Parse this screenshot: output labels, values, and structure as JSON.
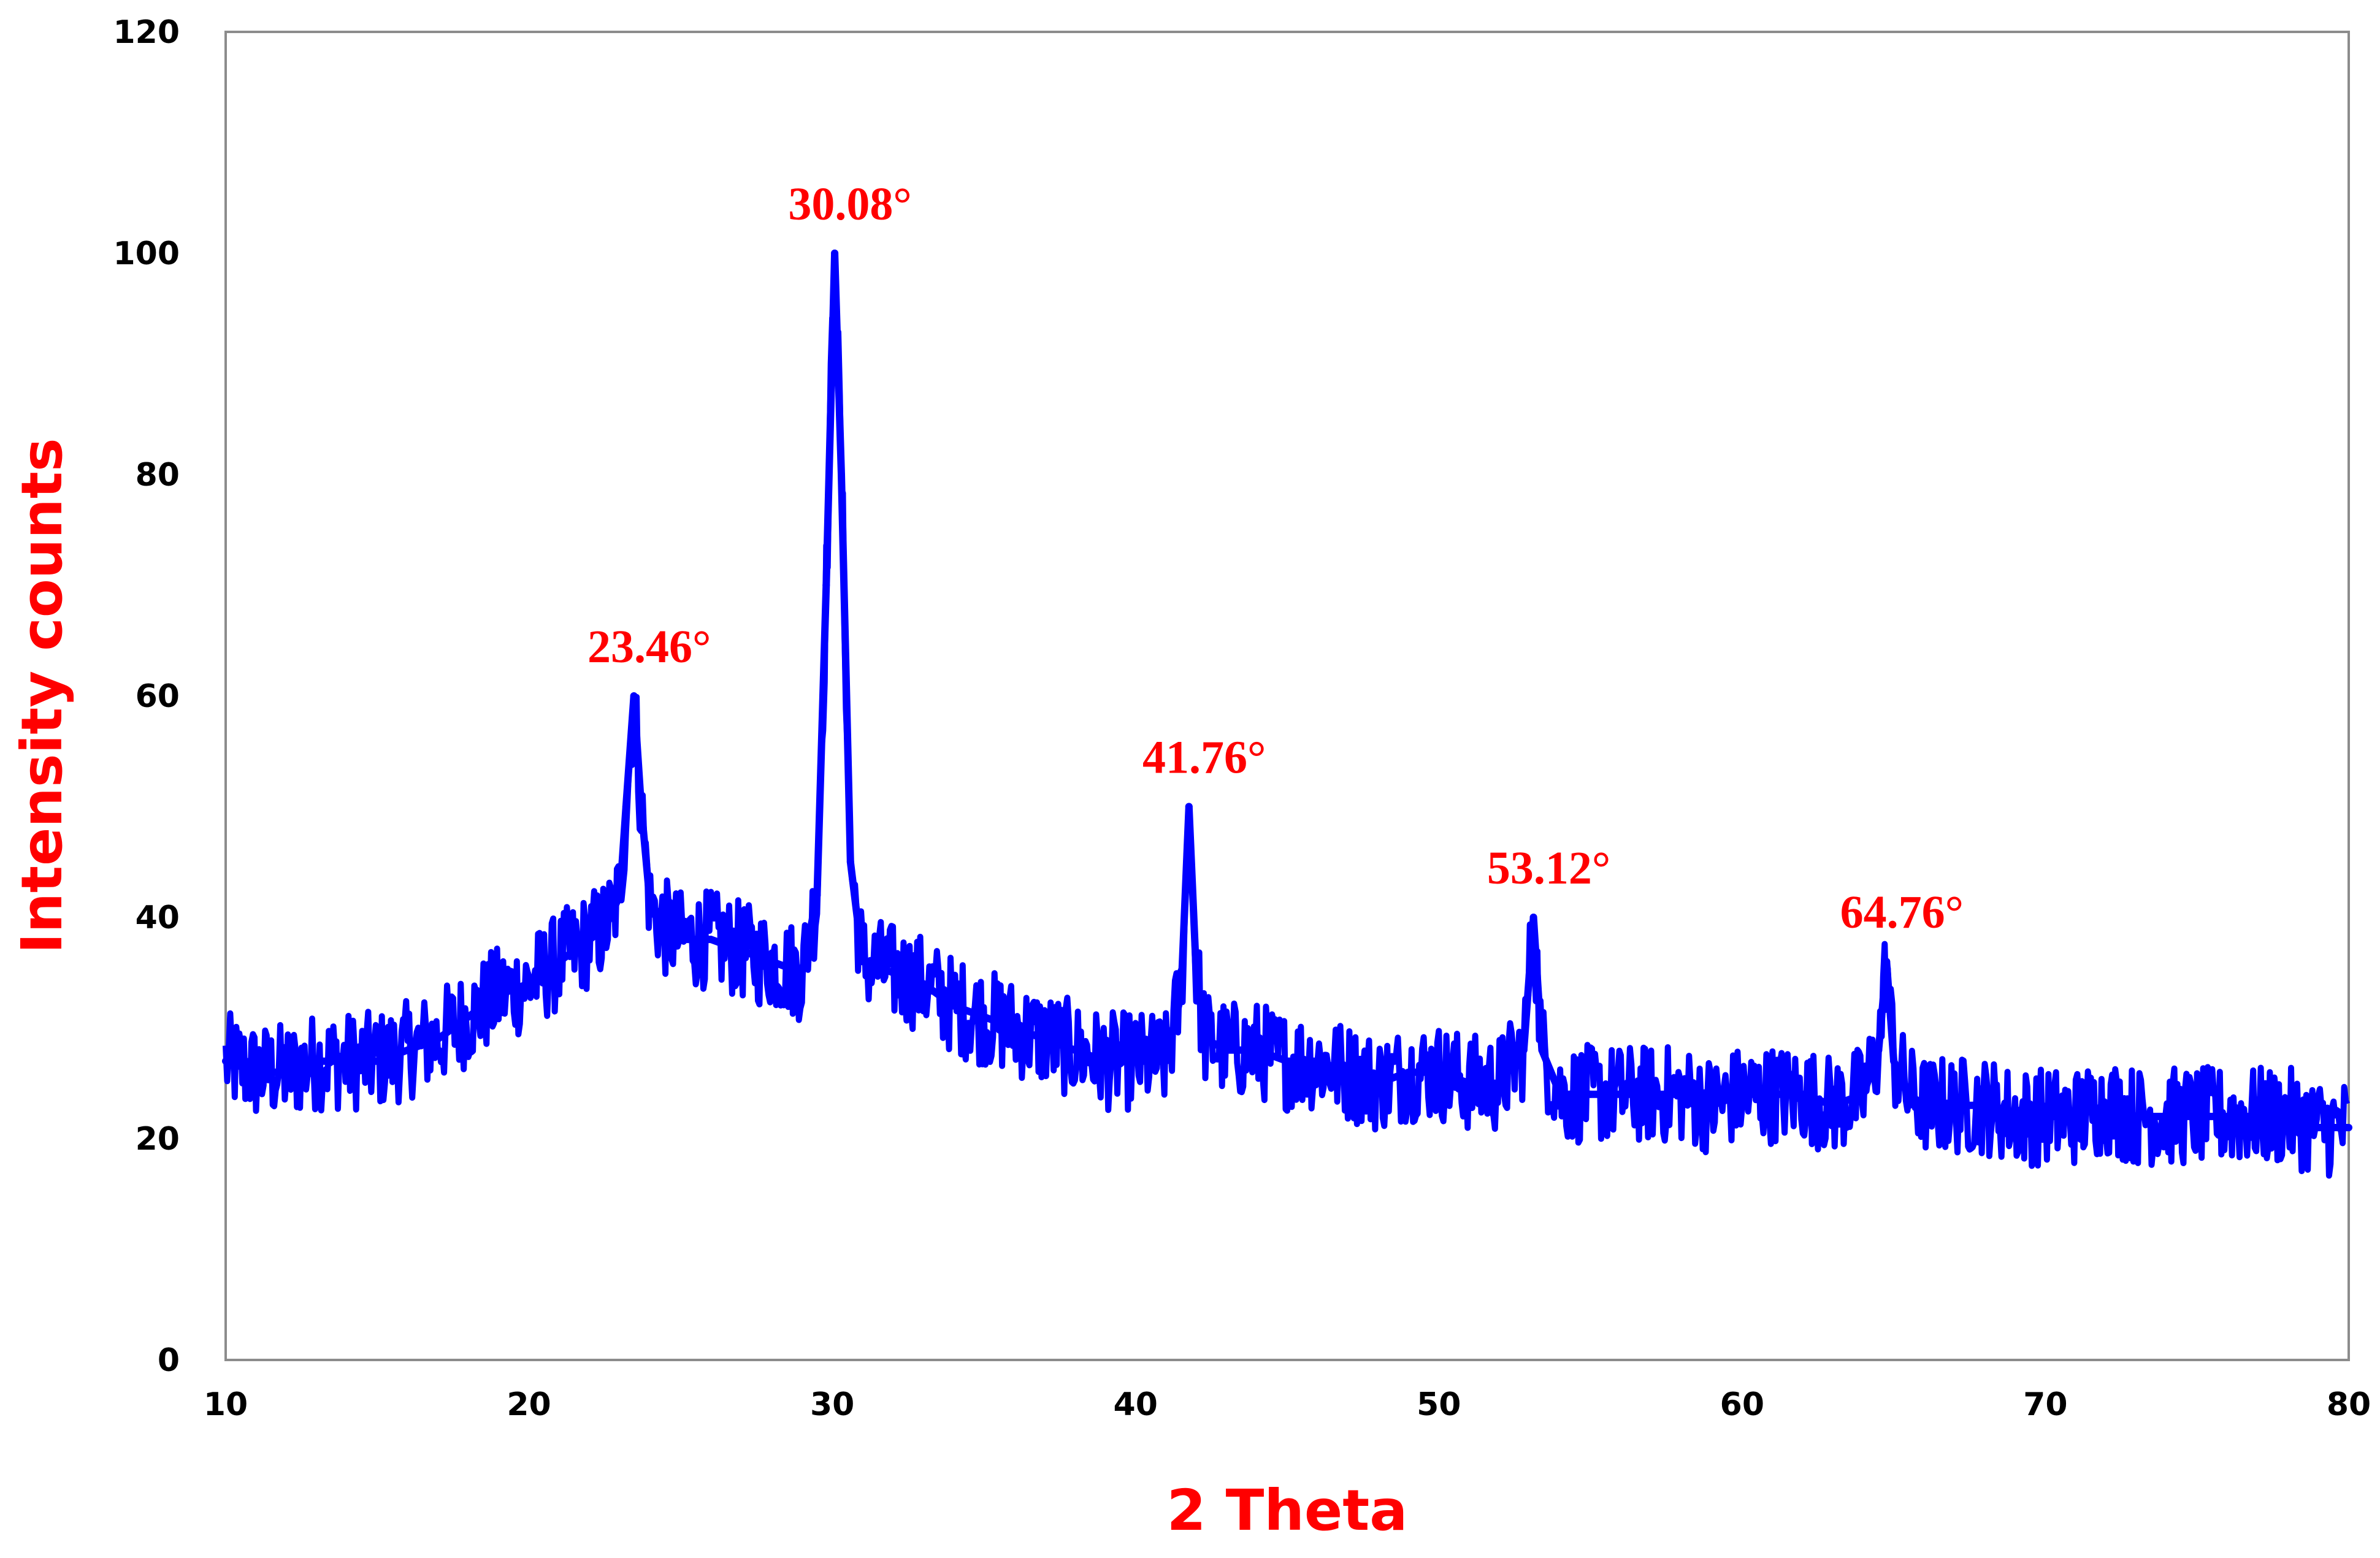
{
  "chart_data": {
    "type": "line",
    "title": "",
    "xlabel": "2 Theta",
    "ylabel": "Intensity counts",
    "xlim": [
      10,
      80
    ],
    "ylim": [
      0,
      120
    ],
    "x_ticks": [
      "10",
      "20",
      "30",
      "40",
      "50",
      "60",
      "70",
      "80"
    ],
    "y_ticks": [
      "0",
      "20",
      "40",
      "60",
      "80",
      "100",
      "120"
    ],
    "grid": false,
    "legend": "none",
    "colors": {
      "series": "#0000ff",
      "axis_title": "#ff0000",
      "annotation": "#ff0000",
      "frame": "#8c8c8c"
    },
    "series": [
      {
        "x": [
          10,
          11,
          12,
          13,
          14,
          15,
          16,
          17,
          18,
          19,
          20,
          21,
          22,
          22.5,
          23,
          23.2,
          23.46,
          23.7,
          24,
          24.5,
          25,
          26,
          27,
          28,
          29,
          29.5,
          29.8,
          30.08,
          30.3,
          30.6,
          31,
          32,
          33,
          34,
          35,
          36,
          37,
          38,
          39,
          40,
          41,
          41.5,
          41.76,
          42,
          42.3,
          43,
          44,
          45,
          46,
          47,
          48,
          49,
          50,
          51,
          52,
          52.8,
          53.12,
          53.4,
          54,
          55,
          56,
          57,
          58,
          59,
          60,
          61,
          62,
          63,
          64,
          64.5,
          64.76,
          65,
          65.5,
          66,
          67,
          68,
          69,
          70,
          71,
          72,
          73,
          74,
          75,
          76,
          77,
          78,
          79,
          80
        ],
        "y": [
          27,
          26,
          26,
          27,
          27,
          27,
          28,
          29,
          31,
          33,
          34,
          36,
          38,
          39,
          42,
          50,
          60,
          50,
          41,
          39,
          38,
          38,
          37,
          36,
          35,
          42,
          70,
          100,
          80,
          45,
          36,
          35,
          34,
          32,
          31,
          30,
          29,
          28,
          27,
          27,
          27,
          33,
          50,
          35,
          29,
          28,
          28,
          27,
          27,
          26,
          25,
          26,
          26,
          25,
          25,
          28,
          40,
          28,
          24,
          24,
          24,
          24,
          24,
          23,
          24,
          24,
          24,
          23,
          24,
          28,
          36,
          27,
          24,
          23,
          23,
          23,
          22,
          22,
          22,
          23,
          22,
          22,
          22,
          22,
          22,
          22,
          21,
          21
        ]
      }
    ],
    "annotations": [
      {
        "text": "23.46°",
        "x": 23.46,
        "y": 60
      },
      {
        "text": "30.08°",
        "x": 30.08,
        "y": 100
      },
      {
        "text": "41.76°",
        "x": 41.76,
        "y": 50
      },
      {
        "text": "53.12°",
        "x": 53.12,
        "y": 40
      },
      {
        "text": "64.76°",
        "x": 64.76,
        "y": 36
      }
    ]
  }
}
